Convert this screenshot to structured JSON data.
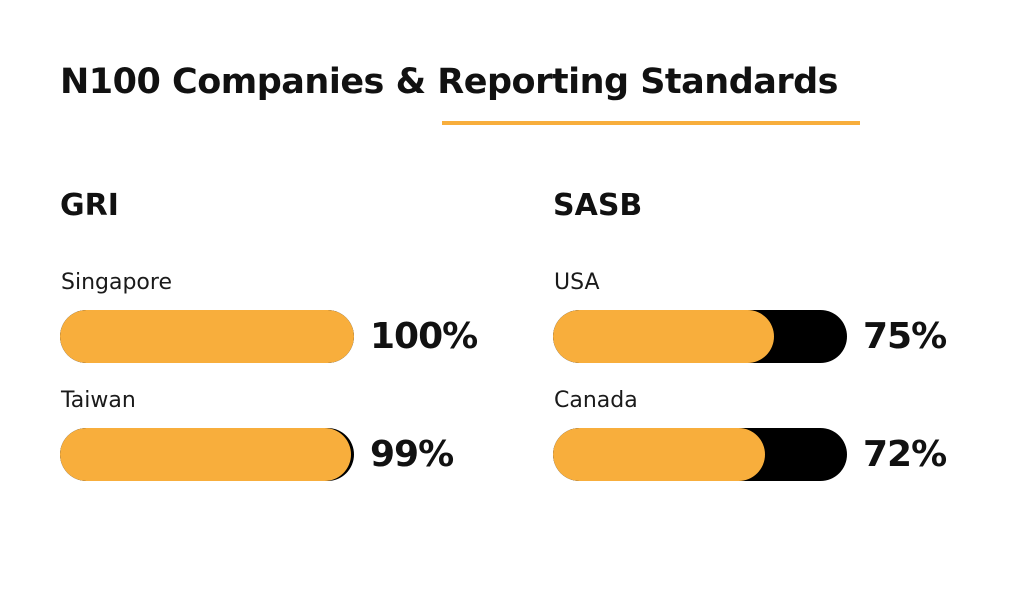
{
  "title": "N100 Companies & Reporting Standards",
  "colors": {
    "accent": "#f8ae3c",
    "track": "#000000",
    "text": "#111111"
  },
  "chart_data": [
    {
      "type": "bar",
      "orientation": "horizontal",
      "title": "GRI",
      "categories": [
        "Singapore",
        "Taiwan"
      ],
      "values": [
        100,
        99
      ],
      "value_labels": [
        "100%",
        "99%"
      ],
      "xlim": [
        0,
        100
      ],
      "unit": "%"
    },
    {
      "type": "bar",
      "orientation": "horizontal",
      "title": "SASB",
      "categories": [
        "USA",
        "Canada"
      ],
      "values": [
        75,
        72
      ],
      "value_labels": [
        "75%",
        "72%"
      ],
      "xlim": [
        0,
        100
      ],
      "unit": "%"
    }
  ]
}
